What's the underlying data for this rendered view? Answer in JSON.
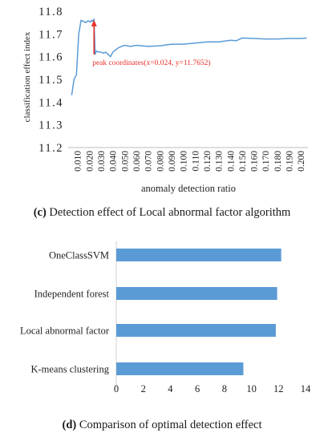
{
  "chart_data": [
    {
      "type": "line",
      "title": "",
      "xlabel": "anomaly detection ratio",
      "ylabel": "classification effect index",
      "ylim": [
        11.2,
        11.8
      ],
      "yticks": [
        "11.8",
        "11.7",
        "11.6",
        "11.5",
        "11.4",
        "11.3",
        "11.2"
      ],
      "xticks": [
        "0.010",
        "0.020",
        "0.030",
        "0.040",
        "0.050",
        "0.060",
        "0.070",
        "0.080",
        "0.090",
        "0.100",
        "0.110",
        "0.120",
        "0.130",
        "0.140",
        "0.150",
        "0.160",
        "0.170",
        "0.180",
        "0.190",
        "0.200"
      ],
      "grid": false,
      "series": [
        {
          "color": "#5B9BD5",
          "x": [
            0.005,
            0.007,
            0.009,
            0.011,
            0.013,
            0.015,
            0.017,
            0.019,
            0.021,
            0.022,
            0.023,
            0.024,
            0.025,
            0.026,
            0.028,
            0.03,
            0.032,
            0.034,
            0.036,
            0.038,
            0.04,
            0.045,
            0.05,
            0.055,
            0.06,
            0.07,
            0.08,
            0.09,
            0.1,
            0.11,
            0.12,
            0.13,
            0.14,
            0.145,
            0.15,
            0.16,
            0.17,
            0.18,
            0.19,
            0.2,
            0.205
          ],
          "y": [
            11.43,
            11.5,
            11.52,
            11.7,
            11.76,
            11.755,
            11.75,
            11.758,
            11.752,
            11.76,
            11.755,
            11.7652,
            11.61,
            11.625,
            11.62,
            11.62,
            11.615,
            11.62,
            11.61,
            11.6,
            11.62,
            11.64,
            11.65,
            11.645,
            11.65,
            11.645,
            11.648,
            11.655,
            11.655,
            11.66,
            11.665,
            11.665,
            11.672,
            11.67,
            11.682,
            11.68,
            11.678,
            11.678,
            11.68,
            11.68,
            11.682
          ]
        }
      ],
      "annotation": {
        "text": "peak coordinates(x=0.024, y=11.7652)",
        "x": 0.024,
        "y": 11.7652,
        "color": "#E8302A"
      }
    },
    {
      "type": "bar",
      "orientation": "horizontal",
      "title": "",
      "categories": [
        "OneClassSVM",
        "Independent forest",
        "Local abnormal factor",
        "K-means clustering"
      ],
      "series": [
        {
          "color": "#5B9BD5",
          "values": [
            12.2,
            11.9,
            11.8,
            9.4
          ]
        }
      ],
      "xlim": [
        0,
        14
      ],
      "xticks": [
        "0",
        "2",
        "4",
        "6",
        "8",
        "10",
        "12",
        "14"
      ],
      "grid": false,
      "legend": "none"
    }
  ],
  "captions": {
    "c": {
      "letter": "(c)",
      "text": " Detection effect of Local abnormal factor algorithm"
    },
    "d": {
      "letter": "(d)",
      "text": " Comparison of optimal detection effect"
    }
  }
}
